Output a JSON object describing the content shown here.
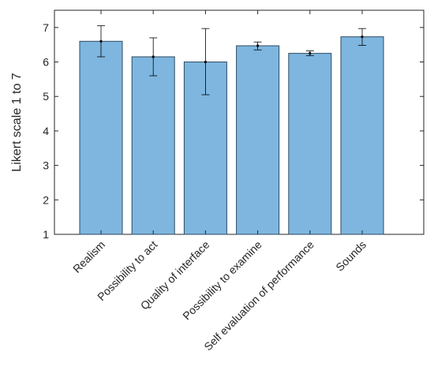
{
  "chart_data": {
    "type": "bar",
    "title": "",
    "xlabel": "",
    "ylabel": "Likert scale 1 to 7",
    "ylim": [
      1,
      7.5
    ],
    "yticks": [
      1,
      2,
      3,
      4,
      5,
      6,
      7
    ],
    "grid": false,
    "categories": [
      "Realism",
      "Possibility to act",
      "Quality of interface",
      "Possibility to examine",
      "Self evaluation of performance",
      "Sounds"
    ],
    "values": [
      6.6,
      6.15,
      6.0,
      6.47,
      6.25,
      6.73
    ],
    "error_low": [
      6.15,
      5.6,
      5.05,
      6.35,
      6.18,
      6.48
    ],
    "error_high": [
      7.05,
      6.7,
      6.97,
      6.58,
      6.32,
      6.97
    ],
    "colors": {
      "bar_fill": "#7EB6DF",
      "bar_edge": "#2E4A62",
      "axis": "#262626",
      "error": "#000000"
    }
  }
}
